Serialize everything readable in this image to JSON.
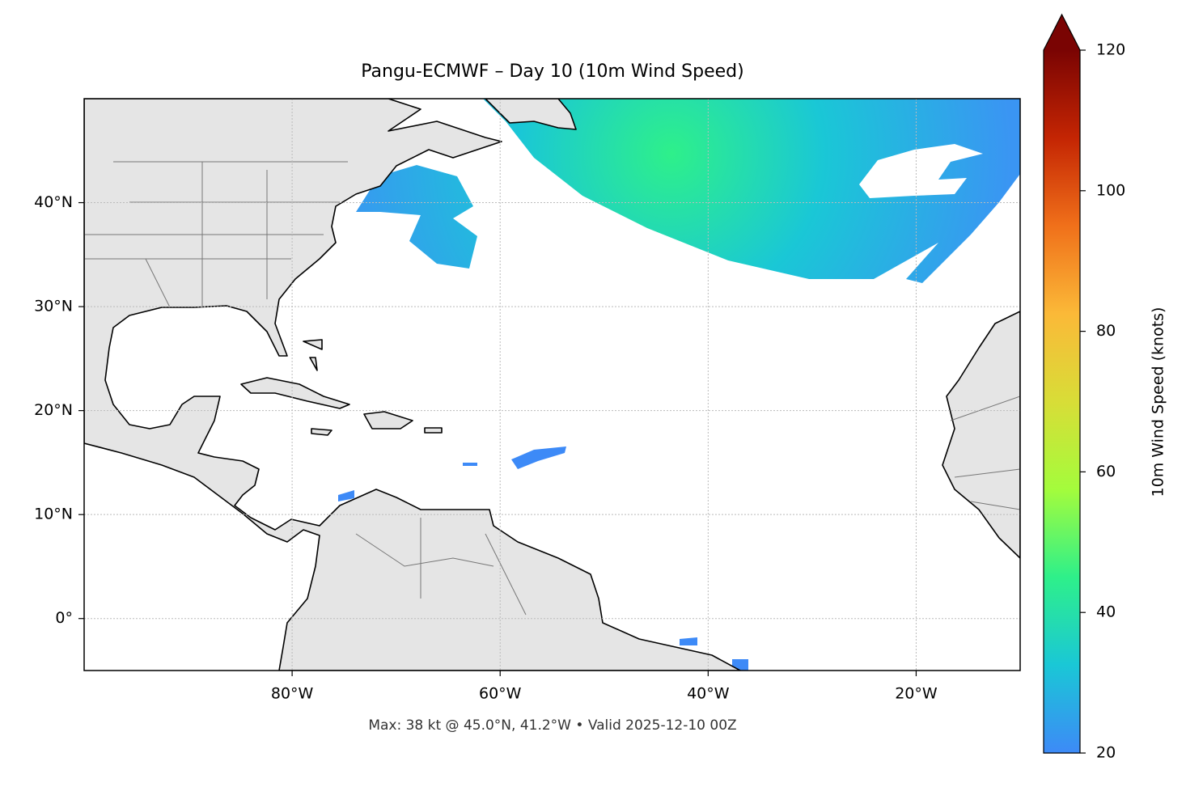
{
  "chart_data": {
    "type": "map",
    "title": "Pangu-ECMWF – Day 10 (10m Wind Speed)",
    "xlim": [
      -100,
      -10
    ],
    "ylim": [
      -5,
      50
    ],
    "xticks": [
      {
        "value": -80,
        "label": "80°W"
      },
      {
        "value": -60,
        "label": "60°W"
      },
      {
        "value": -40,
        "label": "40°W"
      },
      {
        "value": -20,
        "label": "20°W"
      }
    ],
    "yticks": [
      {
        "value": 0,
        "label": "0°"
      },
      {
        "value": 10,
        "label": "10°N"
      },
      {
        "value": 20,
        "label": "20°N"
      },
      {
        "value": 30,
        "label": "30°N"
      },
      {
        "value": 40,
        "label": "40°N"
      }
    ],
    "grid": true,
    "annotation": "Max: 38 kt @ 45.0°N, 41.2°W • Valid 2025-12-10 00Z",
    "colorbar": {
      "label": "10m Wind Speed (knots)",
      "lim": [
        20,
        120
      ],
      "ticks": [
        20,
        40,
        60,
        80,
        100,
        120
      ],
      "extend": "max",
      "colormap": [
        "#3d8af7",
        "#1ac7d6",
        "#2ef08a",
        "#a4fc3c",
        "#d8dd37",
        "#fbb938",
        "#f0701a",
        "#c42503",
        "#7a0403"
      ]
    }
  }
}
